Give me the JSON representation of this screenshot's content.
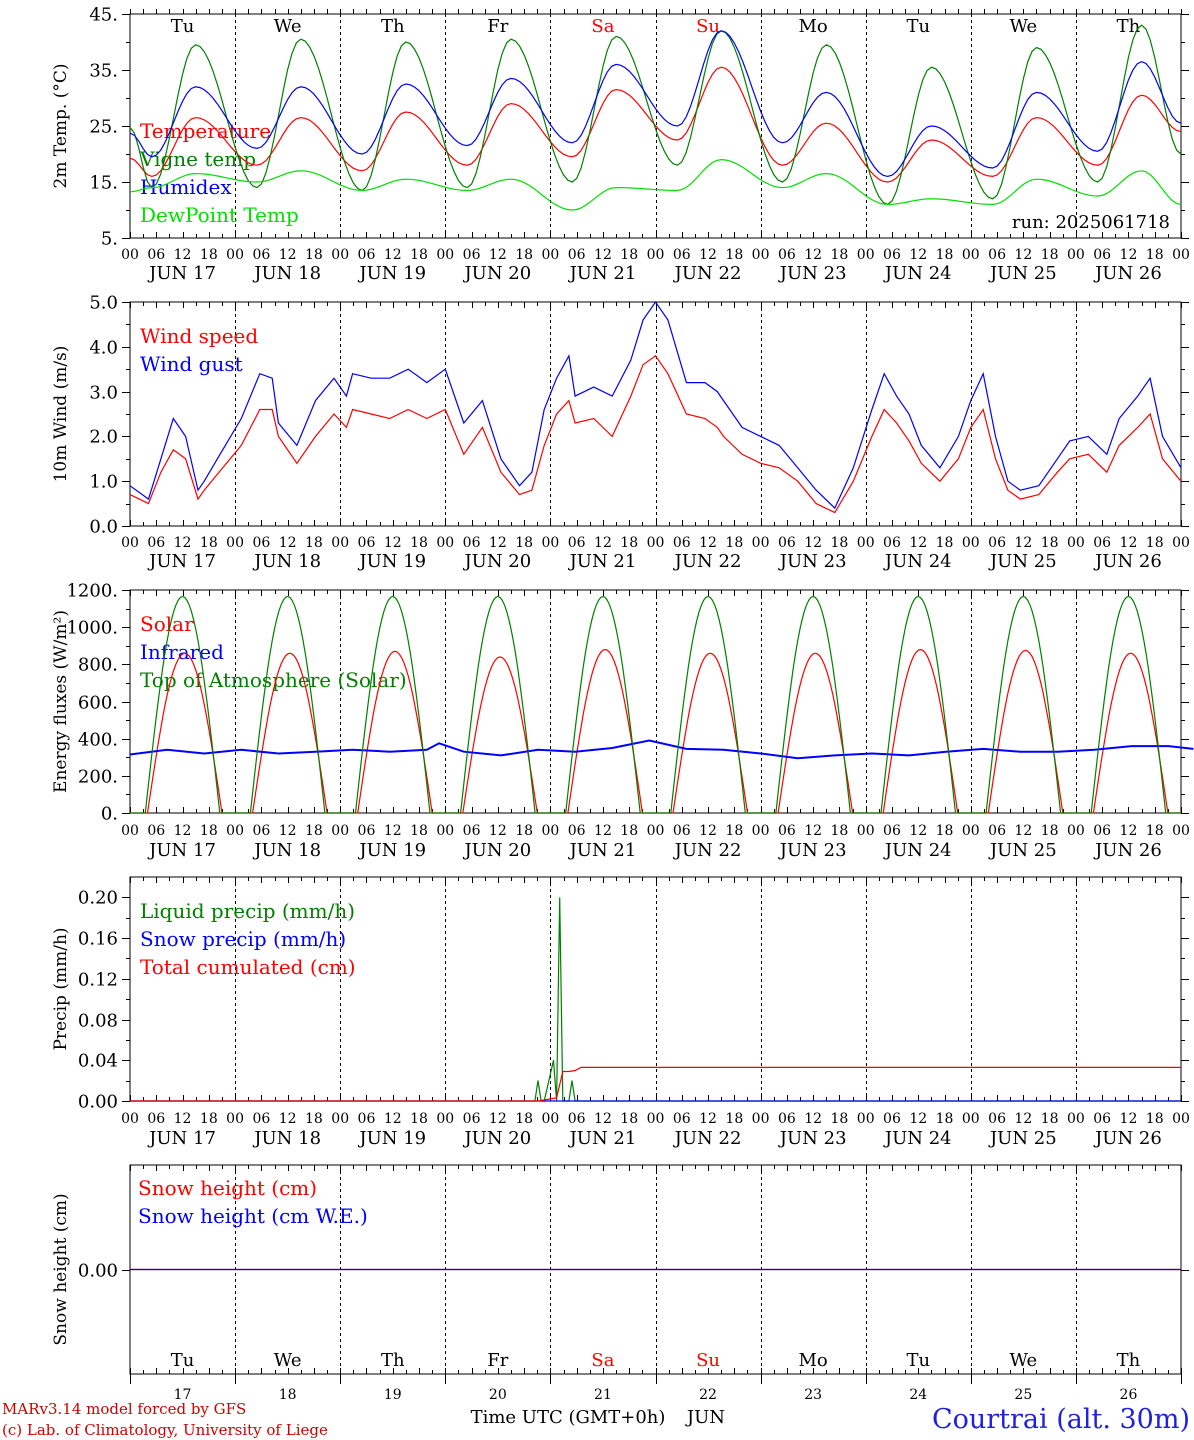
{
  "chart_data": [
    {
      "type": "line",
      "ylabel": "2m Temp. (°C)",
      "ylim": [
        5,
        45
      ],
      "yticks": [
        "5.",
        "15.",
        "25.",
        "35.",
        "45."
      ],
      "annotation": "run: 2025061718",
      "days_top": [
        "Tu",
        "We",
        "Th",
        "Fr",
        "Sa",
        "Su",
        "Mo",
        "Tu",
        "We",
        "Th"
      ],
      "weekend_days": [
        4,
        5
      ],
      "date_labels": [
        "JUN 17",
        "JUN 18",
        "JUN 19",
        "JUN 20",
        "JUN 21",
        "JUN 22",
        "JUN 23",
        "JUN 24",
        "JUN 25",
        "JUN 26"
      ],
      "hour_labels": [
        "00",
        "06",
        "12",
        "18"
      ],
      "series": [
        {
          "name": "Temperature",
          "color": "#ff0000",
          "min": [
            16,
            18,
            17,
            18,
            19.5,
            22.5,
            18,
            15,
            16,
            18
          ],
          "max": [
            26.5,
            26.5,
            27.5,
            29,
            31.5,
            35.5,
            25.5,
            22.5,
            26.5,
            30.5
          ],
          "end": 24
        },
        {
          "name": "Vigne temp",
          "color": "#008000",
          "min": [
            14,
            14,
            13.5,
            14,
            15,
            18,
            15,
            11,
            12,
            15
          ],
          "max": [
            39.5,
            40.5,
            40,
            40.5,
            41,
            42,
            39.5,
            35.5,
            39,
            43
          ],
          "end": 20
        },
        {
          "name": "Humidex",
          "color": "#0000ff",
          "min": [
            19.5,
            21,
            20,
            21.5,
            22,
            25,
            22,
            16,
            17.5,
            20.5
          ],
          "max": [
            32,
            32,
            32.5,
            33.5,
            36,
            42,
            31,
            25,
            31,
            36.5
          ],
          "end": 25.5
        },
        {
          "name": "DewPoint Temp",
          "color": "#00e000",
          "min": [
            14,
            15,
            13.5,
            13.5,
            10,
            13.5,
            14,
            11,
            11,
            12.5
          ],
          "max": [
            16.5,
            17,
            15.5,
            15.5,
            14,
            19,
            16.5,
            12,
            15.5,
            17
          ],
          "end": 11
        }
      ]
    },
    {
      "type": "line",
      "ylabel": "10m Wind (m/s)",
      "ylim": [
        0,
        5
      ],
      "yticks": [
        "0.0",
        "1.0",
        "2.0",
        "3.0",
        "4.0",
        "5.0"
      ],
      "date_labels": [
        "JUN 17",
        "JUN 18",
        "JUN 19",
        "JUN 20",
        "JUN 21",
        "JUN 22",
        "JUN 23",
        "JUN 24",
        "JUN 25",
        "JUN 26"
      ],
      "hour_labels": [
        "00",
        "06",
        "12",
        "18"
      ],
      "series": [
        {
          "name": "Wind speed",
          "color": "#ff0000",
          "x": [
            0,
            6,
            10,
            14,
            18,
            22,
            24,
            30,
            36,
            42,
            46,
            48,
            54,
            60,
            66,
            70,
            72,
            78,
            84,
            90,
            96,
            102,
            108,
            114,
            120,
            126,
            130,
            134,
            138,
            142,
            144,
            150,
            156,
            162,
            166,
            170,
            174,
            180,
            186,
            190,
            192,
            198,
            204,
            210,
            216,
            222,
            228,
            234,
            240,
            244,
            248,
            252,
            256,
            262,
            268,
            272,
            276,
            280,
            284,
            288,
            294,
            300,
            304,
            310,
            316,
            320,
            326,
            330,
            334,
            340
          ],
          "values": [
            0.7,
            0.5,
            1.2,
            1.7,
            1.5,
            0.6,
            0.8,
            1.3,
            1.8,
            2.6,
            2.6,
            2.0,
            1.4,
            2.0,
            2.5,
            2.2,
            2.6,
            2.5,
            2.4,
            2.6,
            2.4,
            2.6,
            1.6,
            2.2,
            1.2,
            0.7,
            0.8,
            1.8,
            2.5,
            2.8,
            2.3,
            2.4,
            2.0,
            2.9,
            3.6,
            3.8,
            3.4,
            2.5,
            2.4,
            2.2,
            2.0,
            1.6,
            1.4,
            1.3,
            1.0,
            0.5,
            0.3,
            1.0,
            2.0,
            2.6,
            2.3,
            1.9,
            1.4,
            1.0,
            1.5,
            2.2,
            2.6,
            1.5,
            0.8,
            0.6,
            0.7,
            1.2,
            1.5,
            1.6,
            1.2,
            1.8,
            2.2,
            2.5,
            1.5,
            1.0
          ],
          "end": 0.8
        },
        {
          "name": "Wind gust",
          "color": "#0000ff",
          "x": [
            0,
            6,
            10,
            14,
            18,
            22,
            24,
            30,
            36,
            42,
            46,
            48,
            54,
            60,
            66,
            70,
            72,
            78,
            84,
            90,
            96,
            102,
            108,
            114,
            120,
            126,
            130,
            134,
            138,
            142,
            144,
            150,
            156,
            162,
            166,
            170,
            174,
            180,
            186,
            190,
            192,
            198,
            204,
            210,
            216,
            222,
            228,
            234,
            240,
            244,
            248,
            252,
            256,
            262,
            268,
            272,
            276,
            280,
            284,
            288,
            294,
            300,
            304,
            310,
            316,
            320,
            326,
            330,
            334,
            340
          ],
          "values": [
            0.9,
            0.6,
            1.5,
            2.4,
            2.0,
            0.8,
            1.0,
            1.7,
            2.4,
            3.4,
            3.3,
            2.3,
            1.8,
            2.8,
            3.3,
            2.9,
            3.4,
            3.3,
            3.3,
            3.5,
            3.2,
            3.5,
            2.3,
            2.8,
            1.5,
            0.9,
            1.2,
            2.6,
            3.3,
            3.8,
            2.9,
            3.1,
            2.9,
            3.7,
            4.6,
            5.0,
            4.6,
            3.2,
            3.2,
            3.0,
            2.8,
            2.2,
            2.0,
            1.8,
            1.3,
            0.8,
            0.4,
            1.3,
            2.6,
            3.4,
            2.9,
            2.5,
            1.8,
            1.3,
            2.0,
            2.8,
            3.4,
            2.0,
            1.0,
            0.8,
            0.9,
            1.5,
            1.9,
            2.0,
            1.6,
            2.4,
            2.9,
            3.3,
            2.0,
            1.3
          ],
          "end": 1.2
        }
      ]
    },
    {
      "type": "line",
      "ylabel": "Energy fluxes (W/m²)",
      "ylim": [
        0,
        1200
      ],
      "yticks": [
        "0.",
        "200.",
        "400.",
        "600.",
        "800.",
        "1000.",
        "1200."
      ],
      "date_labels": [
        "JUN 17",
        "JUN 18",
        "JUN 19",
        "JUN 20",
        "JUN 21",
        "JUN 22",
        "JUN 23",
        "JUN 24",
        "JUN 25",
        "JUN 26"
      ],
      "hour_labels": [
        "00",
        "06",
        "12",
        "18"
      ],
      "series": [
        {
          "name": "Solar",
          "color": "#ff0000",
          "daily_peak": [
            860,
            860,
            870,
            840,
            880,
            860,
            860,
            880,
            875,
            860
          ],
          "sunrise": 4,
          "sunset": 21
        },
        {
          "name": "Infrared",
          "color": "#0000ff",
          "x": [
            0,
            12,
            24,
            36,
            48,
            60,
            72,
            84,
            96,
            100,
            108,
            120,
            132,
            144,
            156,
            168,
            180,
            192,
            204,
            216,
            228,
            240,
            252,
            264,
            276,
            288,
            300,
            312,
            324,
            336,
            344
          ],
          "values": [
            315,
            340,
            320,
            340,
            320,
            330,
            340,
            330,
            340,
            375,
            330,
            310,
            340,
            330,
            350,
            390,
            345,
            340,
            320,
            295,
            310,
            320,
            310,
            330,
            345,
            330,
            330,
            340,
            360,
            360,
            345
          ]
        },
        {
          "name": "Top of Atmosphere (Solar)",
          "color": "#008000",
          "daily_peak": [
            1165,
            1165,
            1165,
            1165,
            1165,
            1165,
            1165,
            1165,
            1165,
            1165
          ],
          "sunrise": 3.5,
          "sunset": 20.5
        }
      ]
    },
    {
      "type": "line",
      "ylabel": "Precip (mm/h)",
      "ylim": [
        0,
        0.22
      ],
      "yticks": [
        "0.00",
        "0.04",
        "0.08",
        "0.12",
        "0.16",
        "0.20"
      ],
      "date_labels": [
        "JUN 17",
        "JUN 18",
        "JUN 19",
        "JUN 20",
        "JUN 21",
        "JUN 22",
        "JUN 23",
        "JUN 24",
        "JUN 25",
        "JUN 26"
      ],
      "hour_labels": [
        "00",
        "06",
        "12",
        "18"
      ],
      "series": [
        {
          "name": "Liquid precip (mm/h)",
          "color": "#008000",
          "x": [
            0,
            131,
            132,
            133,
            134,
            137,
            138,
            139,
            140,
            141,
            142,
            143,
            144,
            145,
            146,
            147,
            148,
            340
          ],
          "values": [
            0,
            0,
            0.02,
            0,
            0,
            0.04,
            0,
            0.2,
            0,
            0,
            0,
            0.02,
            0,
            0,
            0,
            0,
            0,
            0
          ]
        },
        {
          "name": "Snow precip (mm/h)",
          "color": "#0000ff",
          "x": [
            0,
            340
          ],
          "values": [
            0,
            0
          ]
        },
        {
          "name": "Total cumulated (cm)",
          "color": "#ff0000",
          "x": [
            0,
            132,
            138,
            140,
            142,
            144,
            146,
            340
          ],
          "values": [
            0,
            0,
            0.003,
            0.029,
            0.029,
            0.03,
            0.033,
            0.033
          ]
        }
      ]
    },
    {
      "type": "line",
      "ylabel": "Snow height (cm)",
      "ylim": [
        -1,
        1
      ],
      "yticks": [
        "0.00"
      ],
      "days_bottom": [
        "Tu",
        "We",
        "Th",
        "Fr",
        "Sa",
        "Su",
        "Mo",
        "Tu",
        "We",
        "Th"
      ],
      "date_numbers": [
        "17",
        "18",
        "19",
        "20",
        "21",
        "22",
        "23",
        "24",
        "25",
        "26"
      ],
      "weekend_days": [
        4,
        5
      ],
      "series": [
        {
          "name": "Snow height (cm)",
          "color": "#ff0000",
          "x": [
            0,
            340
          ],
          "values": [
            0,
            0
          ]
        },
        {
          "name": "Snow height (cm W.E.)",
          "color": "#0000ff",
          "x": [
            0,
            340
          ],
          "values": [
            0,
            0
          ]
        }
      ]
    }
  ],
  "xaxis_title": "Time UTC (GMT+0h)",
  "month_label": "JUN",
  "credit_line1": "MARv3.14 model forced by GFS",
  "credit_line2": "(c) Lab. of Climatology, University of Liege",
  "station": "Courtrai (alt. 30m)"
}
